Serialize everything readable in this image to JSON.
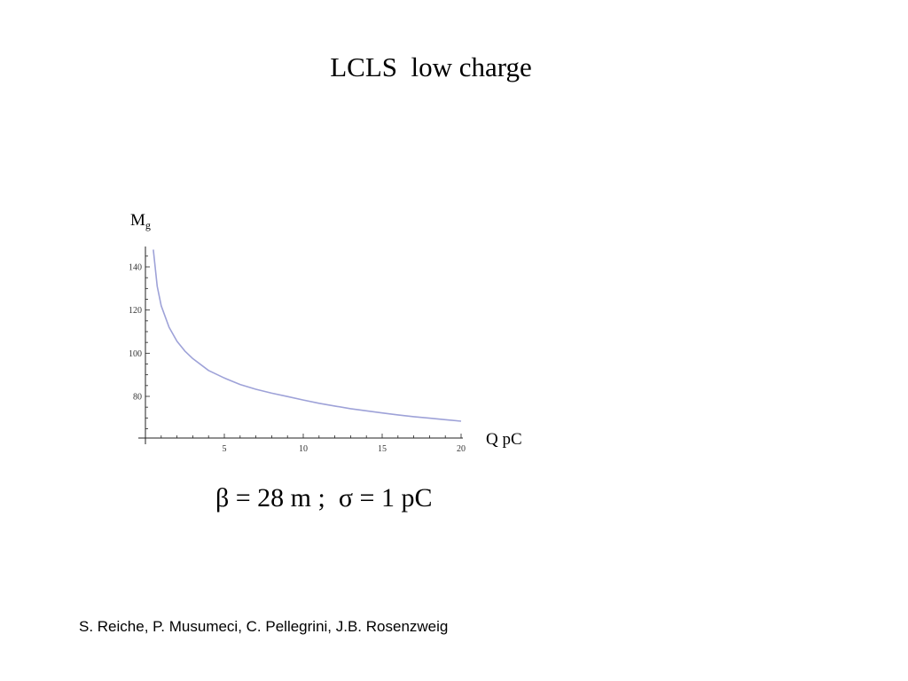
{
  "slide": {
    "title": "LCLS  low charge",
    "formula": "β = 28 m ;  σ = 1 pC",
    "credits": "S. Reiche, P. Musumeci, C. Pellegrini, J.B. Rosenzweig"
  },
  "chart_data": {
    "type": "line",
    "ylabel_main": "M",
    "ylabel_sub": "g",
    "xlabel": "Q pC",
    "xlim": [
      0,
      20
    ],
    "ylim": [
      60,
      150
    ],
    "xticks": [
      5,
      10,
      15,
      20
    ],
    "xtick_labels": [
      "5",
      "10",
      "15",
      "20"
    ],
    "yticks": [
      80,
      100,
      120,
      140
    ],
    "ytick_labels": [
      "80",
      "100",
      "120",
      "140"
    ],
    "grid": false,
    "line_color": "#9ea2d8",
    "series": [
      {
        "x": [
          0.5,
          0.75,
          1,
          1.5,
          2,
          2.5,
          3,
          4,
          5,
          6,
          7,
          8,
          9,
          10,
          11,
          12,
          13,
          14,
          15,
          16,
          17,
          18,
          19,
          20
        ],
        "y": [
          148,
          131,
          122,
          112,
          105.5,
          101,
          97.5,
          92,
          88.5,
          85.5,
          83.3,
          81.5,
          79.9,
          78.3,
          76.8,
          75.5,
          74.3,
          73.3,
          72.3,
          71.4,
          70.6,
          69.9,
          69.2,
          68.5
        ]
      }
    ]
  }
}
